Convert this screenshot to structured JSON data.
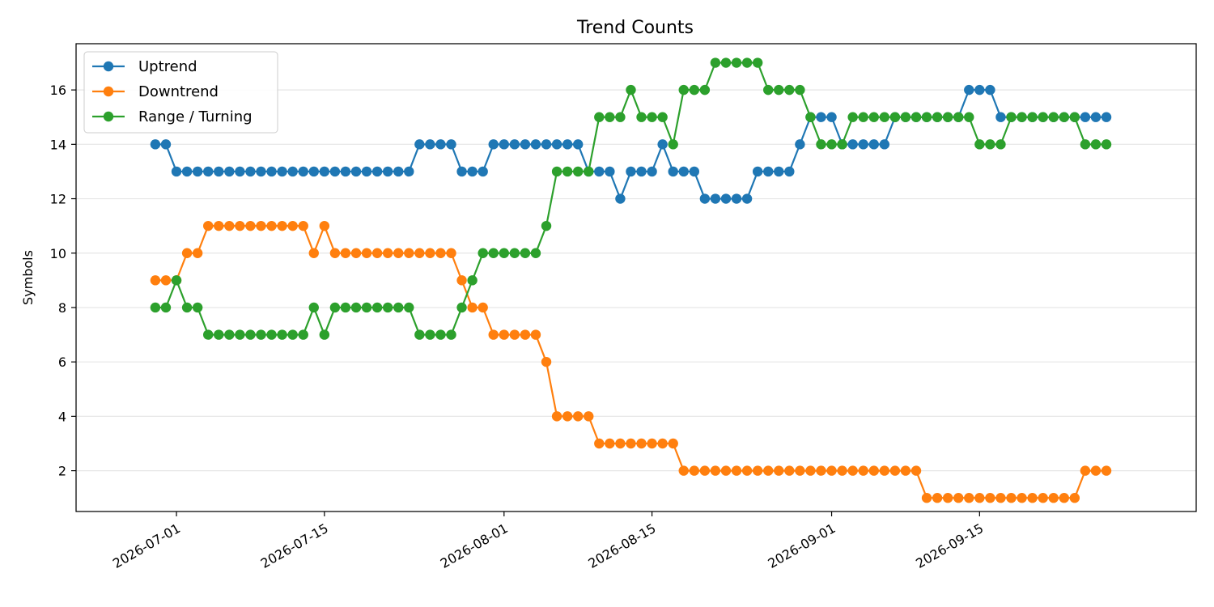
{
  "chart_data": {
    "type": "line",
    "title": "Trend Counts",
    "xlabel": "",
    "ylabel": "Symbols",
    "x": [
      "2026-06-29",
      "2026-06-30",
      "2026-07-01",
      "2026-07-02",
      "2026-07-03",
      "2026-07-04",
      "2026-07-05",
      "2026-07-06",
      "2026-07-07",
      "2026-07-08",
      "2026-07-09",
      "2026-07-10",
      "2026-07-11",
      "2026-07-12",
      "2026-07-13",
      "2026-07-14",
      "2026-07-15",
      "2026-07-16",
      "2026-07-17",
      "2026-07-18",
      "2026-07-19",
      "2026-07-20",
      "2026-07-21",
      "2026-07-22",
      "2026-07-23",
      "2026-07-24",
      "2026-07-25",
      "2026-07-26",
      "2026-07-27",
      "2026-07-28",
      "2026-07-29",
      "2026-07-30",
      "2026-07-31",
      "2026-08-01",
      "2026-08-02",
      "2026-08-03",
      "2026-08-04",
      "2026-08-05",
      "2026-08-06",
      "2026-08-07",
      "2026-08-08",
      "2026-08-09",
      "2026-08-10",
      "2026-08-11",
      "2026-08-12",
      "2026-08-13",
      "2026-08-14",
      "2026-08-15",
      "2026-08-16",
      "2026-08-17",
      "2026-08-18",
      "2026-08-19",
      "2026-08-20",
      "2026-08-21",
      "2026-08-22",
      "2026-08-23",
      "2026-08-24",
      "2026-08-25",
      "2026-08-26",
      "2026-08-27",
      "2026-08-28",
      "2026-08-29",
      "2026-08-30",
      "2026-08-31",
      "2026-09-01",
      "2026-09-02",
      "2026-09-03",
      "2026-09-04",
      "2026-09-05",
      "2026-09-06",
      "2026-09-07",
      "2026-09-08",
      "2026-09-09",
      "2026-09-10",
      "2026-09-11",
      "2026-09-12",
      "2026-09-13",
      "2026-09-14",
      "2026-09-15",
      "2026-09-16",
      "2026-09-17",
      "2026-09-18",
      "2026-09-19",
      "2026-09-20",
      "2026-09-21",
      "2026-09-22",
      "2026-09-23",
      "2026-09-24",
      "2026-09-25",
      "2026-09-26",
      "2026-09-27"
    ],
    "series": [
      {
        "name": "Uptrend",
        "color": "#1f77b4",
        "values": [
          14,
          14,
          13,
          13,
          13,
          13,
          13,
          13,
          13,
          13,
          13,
          13,
          13,
          13,
          13,
          13,
          13,
          13,
          13,
          13,
          13,
          13,
          13,
          13,
          13,
          14,
          14,
          14,
          14,
          13,
          13,
          13,
          14,
          14,
          14,
          14,
          14,
          14,
          14,
          14,
          14,
          13,
          13,
          13,
          12,
          13,
          13,
          13,
          14,
          13,
          13,
          13,
          12,
          12,
          12,
          12,
          12,
          13,
          13,
          13,
          13,
          14,
          15,
          15,
          15,
          14,
          14,
          14,
          14,
          14,
          15,
          15,
          15,
          15,
          15,
          15,
          15,
          16,
          16,
          16,
          15,
          15,
          15,
          15,
          15,
          15,
          15,
          15,
          15,
          15,
          15
        ]
      },
      {
        "name": "Downtrend",
        "color": "#ff7f0e",
        "values": [
          9,
          9,
          9,
          10,
          10,
          11,
          11,
          11,
          11,
          11,
          11,
          11,
          11,
          11,
          11,
          10,
          11,
          10,
          10,
          10,
          10,
          10,
          10,
          10,
          10,
          10,
          10,
          10,
          10,
          9,
          8,
          8,
          7,
          7,
          7,
          7,
          7,
          6,
          4,
          4,
          4,
          4,
          3,
          3,
          3,
          3,
          3,
          3,
          3,
          3,
          2,
          2,
          2,
          2,
          2,
          2,
          2,
          2,
          2,
          2,
          2,
          2,
          2,
          2,
          2,
          2,
          2,
          2,
          2,
          2,
          2,
          2,
          2,
          1,
          1,
          1,
          1,
          1,
          1,
          1,
          1,
          1,
          1,
          1,
          1,
          1,
          1,
          1,
          2,
          2,
          2
        ]
      },
      {
        "name": "Range / Turning",
        "color": "#2ca02c",
        "values": [
          8,
          8,
          9,
          8,
          8,
          7,
          7,
          7,
          7,
          7,
          7,
          7,
          7,
          7,
          7,
          8,
          7,
          8,
          8,
          8,
          8,
          8,
          8,
          8,
          8,
          7,
          7,
          7,
          7,
          8,
          9,
          10,
          10,
          10,
          10,
          10,
          10,
          11,
          13,
          13,
          13,
          13,
          15,
          15,
          15,
          16,
          15,
          15,
          15,
          14,
          16,
          16,
          16,
          17,
          17,
          17,
          17,
          17,
          16,
          16,
          16,
          16,
          15,
          14,
          14,
          14,
          15,
          15,
          15,
          15,
          15,
          15,
          15,
          15,
          15,
          15,
          15,
          15,
          14,
          14,
          14,
          15,
          15,
          15,
          15,
          15,
          15,
          15,
          14,
          14,
          14
        ]
      }
    ],
    "xticks": [
      "2026-07-01",
      "2026-07-15",
      "2026-08-01",
      "2026-08-15",
      "2026-09-01",
      "2026-09-15"
    ],
    "yticks": [
      2,
      4,
      6,
      8,
      10,
      12,
      14,
      16
    ],
    "ylim": [
      0.5,
      17.7
    ],
    "xlim": [
      "2026-06-21T12:00",
      "2026-10-05T12:00"
    ],
    "grid": "horizontal",
    "legend": "top-left"
  }
}
